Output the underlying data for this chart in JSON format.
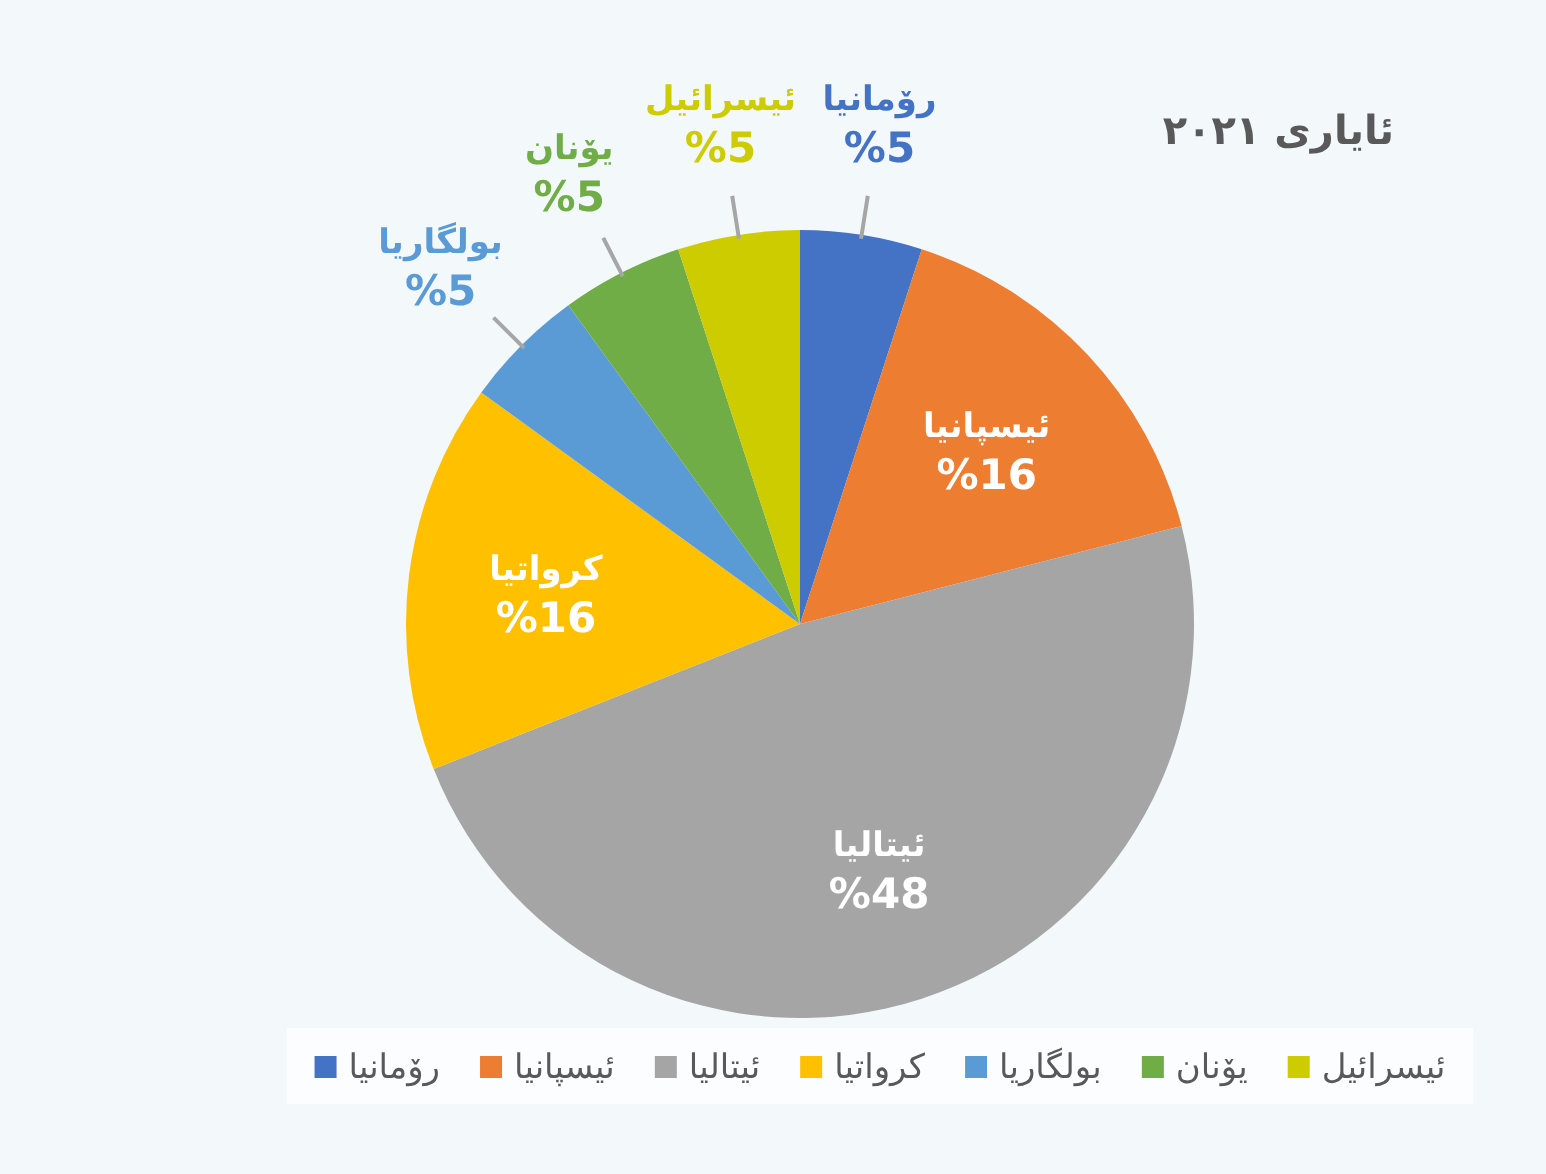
{
  "chart_data": {
    "type": "pie",
    "title": "ئایاری ٢٠٢١",
    "categories": [
      "رۆمانیا",
      "ئیسپانیا",
      "ئیتالیا",
      "کرواتیا",
      "بولگاریا",
      "یۆنان",
      "ئیسرائیل"
    ],
    "values": [
      5,
      16,
      48,
      16,
      5,
      5,
      5
    ],
    "colors": [
      "#4472c4",
      "#ed7d31",
      "#a5a5a5",
      "#ffc000",
      "#5b9bd5",
      "#70ad47",
      "#cccc00"
    ],
    "value_labels": [
      "%5",
      "%16",
      "%48",
      "%16",
      "%5",
      "%5",
      "%5"
    ],
    "legend": "bottom"
  }
}
